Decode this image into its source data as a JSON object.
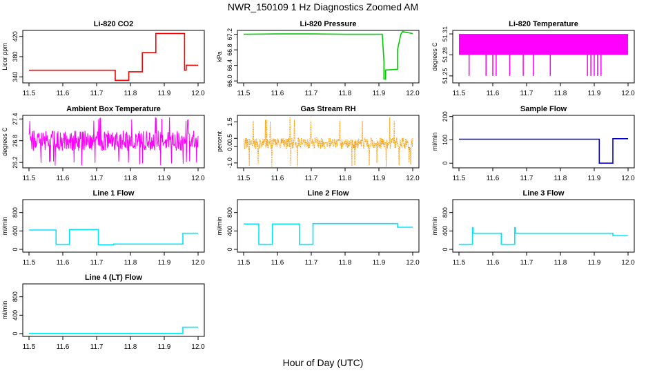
{
  "figure": {
    "title": "NWR_150109  1 Hz Diagnostics Zoomed AM",
    "xlabel": "Hour of Day (UTC)"
  },
  "chart_data": [
    {
      "type": "line",
      "title": "Li-820 CO2",
      "ylabel": "Licor ppm",
      "color": "#ff0000",
      "xlim": [
        11.5,
        12.0
      ],
      "ylim": [
        328,
        432
      ],
      "xticks": [
        "11.5",
        "11.6",
        "11.7",
        "11.8",
        "11.9",
        "12.0"
      ],
      "yticks": [
        {
          "v": 340,
          "label": "340"
        },
        {
          "v": 380,
          "label": "380"
        },
        {
          "v": 420,
          "label": "420"
        }
      ],
      "series": [
        {
          "x": [
            11.5,
            11.755,
            11.755,
            11.795,
            11.795,
            11.835,
            11.835,
            11.875,
            11.875,
            11.96,
            11.96,
            11.965,
            11.965,
            12.0
          ],
          "y": [
            353,
            353,
            333,
            333,
            350,
            350,
            388,
            388,
            426,
            426,
            353,
            353,
            363,
            363
          ]
        }
      ]
    },
    {
      "type": "line",
      "title": "Li-820 Pressure",
      "ylabel": "kPa",
      "color": "#00cc00",
      "xlim": [
        11.5,
        12.0
      ],
      "ylim": [
        65.95,
        67.3
      ],
      "xticks": [
        "11.5",
        "11.6",
        "11.7",
        "11.8",
        "11.9",
        "12.0"
      ],
      "yticks": [
        {
          "v": 66.0,
          "label": "66.0"
        },
        {
          "v": 66.4,
          "label": "66.4"
        },
        {
          "v": 66.8,
          "label": "66.8"
        },
        {
          "v": 67.2,
          "label": "67.2"
        }
      ],
      "series": [
        {
          "x": [
            11.5,
            11.6,
            11.7,
            11.8,
            11.85,
            11.91,
            11.915,
            11.915,
            11.92,
            11.92,
            11.955,
            11.955,
            11.965,
            11.97,
            11.98,
            12.0
          ],
          "y": [
            67.2,
            67.21,
            67.21,
            67.2,
            67.2,
            67.2,
            66.5,
            66.05,
            66.05,
            66.28,
            66.3,
            66.8,
            67.2,
            67.27,
            67.25,
            67.22
          ]
        }
      ]
    },
    {
      "type": "line",
      "title": "Li-820 Temperature",
      "ylabel": "degrees C",
      "color": "#ff00ff",
      "xlim": [
        11.5,
        12.0
      ],
      "ylim": [
        51.24,
        51.315
      ],
      "xticks": [
        "11.5",
        "11.6",
        "11.7",
        "11.8",
        "11.9",
        "12.0"
      ],
      "yticks": [
        {
          "v": 51.25,
          "label": "51.25"
        },
        {
          "v": 51.28,
          "label": "51.28"
        },
        {
          "v": 51.31,
          "label": "51.31"
        }
      ],
      "band": {
        "lo": 51.28,
        "hi": 51.31
      },
      "spikes": [
        {
          "x": 11.53,
          "y": 51.25
        },
        {
          "x": 11.58,
          "y": 51.25
        },
        {
          "x": 11.6,
          "y": 51.25
        },
        {
          "x": 11.61,
          "y": 51.25
        },
        {
          "x": 11.65,
          "y": 51.25
        },
        {
          "x": 11.69,
          "y": 51.25
        },
        {
          "x": 11.72,
          "y": 51.25
        },
        {
          "x": 11.77,
          "y": 51.25
        },
        {
          "x": 11.88,
          "y": 51.25
        },
        {
          "x": 11.89,
          "y": 51.25
        },
        {
          "x": 11.9,
          "y": 51.25
        },
        {
          "x": 11.91,
          "y": 51.25
        },
        {
          "x": 11.92,
          "y": 51.25
        }
      ]
    },
    {
      "type": "line",
      "title": "Ambient Box Temperature",
      "ylabel": "degrees C",
      "color": "#ff00ff",
      "xlim": [
        11.5,
        12.0
      ],
      "ylim": [
        26.05,
        27.5
      ],
      "xticks": [
        "11.5",
        "11.6",
        "11.7",
        "11.8",
        "11.9",
        "12.0"
      ],
      "yticks": [
        {
          "v": 26.2,
          "label": "26.2"
        },
        {
          "v": 26.8,
          "label": "26.8"
        },
        {
          "v": 27.4,
          "label": "27.4"
        }
      ],
      "noise": {
        "center": 26.8,
        "spread": 0.28,
        "lo": 26.1,
        "hi": 27.45,
        "spikes": 0.06
      }
    },
    {
      "type": "line",
      "title": "Gas Stream RH",
      "ylabel": "percent",
      "color": "#ff9900",
      "xlim": [
        11.5,
        12.0
      ],
      "ylim": [
        -1.3,
        1.9
      ],
      "xticks": [
        "11.5",
        "11.6",
        "11.7",
        "11.8",
        "11.9",
        "12.0"
      ],
      "yticks": [
        {
          "v": -1.0,
          "label": "-1.0"
        },
        {
          "v": 0.0,
          "label": "0.0"
        },
        {
          "v": 0.5,
          "label": "0.5"
        },
        {
          "v": 1.5,
          "label": "1.5"
        }
      ],
      "noise": {
        "center": 0.2,
        "spread": 0.35,
        "lo": -1.25,
        "hi": 1.8,
        "spikes": 0.04
      }
    },
    {
      "type": "line",
      "title": "Sample Flow",
      "ylabel": "ml/min",
      "color": "#0000cc",
      "xlim": [
        11.5,
        12.0
      ],
      "ylim": [
        -20,
        205
      ],
      "xticks": [
        "11.5",
        "11.6",
        "11.7",
        "11.8",
        "11.9",
        "12.0"
      ],
      "yticks": [
        {
          "v": 0,
          "label": "0"
        },
        {
          "v": 100,
          "label": "100"
        },
        {
          "v": 200,
          "label": "200"
        }
      ],
      "series": [
        {
          "x": [
            11.5,
            11.915,
            11.915,
            11.955,
            11.955,
            12.0
          ],
          "y": [
            103,
            103,
            0,
            0,
            105,
            105
          ]
        }
      ]
    },
    {
      "type": "line",
      "title": "Line 1 Flow",
      "ylabel": "ml/min",
      "color": "#00e5ff",
      "xlim": [
        11.5,
        12.0
      ],
      "ylim": [
        -60,
        1080
      ],
      "xticks": [
        "11.5",
        "11.6",
        "11.7",
        "11.8",
        "11.9",
        "12.0"
      ],
      "yticks": [
        {
          "v": 0,
          "label": "0"
        },
        {
          "v": 400,
          "label": "400"
        },
        {
          "v": 800,
          "label": "800"
        }
      ],
      "series": [
        {
          "x": [
            11.5,
            11.58,
            11.58,
            11.62,
            11.62,
            11.705,
            11.705,
            11.75,
            11.75,
            11.955,
            11.955,
            12.0
          ],
          "y": [
            420,
            420,
            110,
            110,
            430,
            430,
            100,
            100,
            115,
            115,
            350,
            350
          ]
        }
      ]
    },
    {
      "type": "line",
      "title": "Line 2 Flow",
      "ylabel": "ml/min",
      "color": "#00e5ff",
      "xlim": [
        11.5,
        12.0
      ],
      "ylim": [
        -60,
        1080
      ],
      "xticks": [
        "11.5",
        "11.6",
        "11.7",
        "11.8",
        "11.9",
        "12.0"
      ],
      "yticks": [
        {
          "v": 0,
          "label": "0"
        },
        {
          "v": 400,
          "label": "400"
        },
        {
          "v": 800,
          "label": "800"
        }
      ],
      "series": [
        {
          "x": [
            11.5,
            11.545,
            11.545,
            11.585,
            11.585,
            11.665,
            11.665,
            11.705,
            11.705,
            11.955,
            11.955,
            12.0
          ],
          "y": [
            550,
            550,
            110,
            110,
            550,
            550,
            110,
            110,
            560,
            560,
            480,
            480
          ]
        }
      ]
    },
    {
      "type": "line",
      "title": "Line 3 Flow",
      "ylabel": "ml/min",
      "color": "#00e5ff",
      "xlim": [
        11.5,
        12.0
      ],
      "ylim": [
        -60,
        1080
      ],
      "xticks": [
        "11.5",
        "11.6",
        "11.7",
        "11.8",
        "11.9",
        "12.0"
      ],
      "yticks": [
        {
          "v": 0,
          "label": "0"
        },
        {
          "v": 400,
          "label": "400"
        },
        {
          "v": 800,
          "label": "800"
        }
      ],
      "series": [
        {
          "x": [
            11.5,
            11.54,
            11.54,
            11.542,
            11.542,
            11.625,
            11.625,
            11.665,
            11.665,
            11.667,
            11.667,
            11.955,
            11.955,
            12.0
          ],
          "y": [
            110,
            110,
            470,
            470,
            350,
            350,
            110,
            110,
            470,
            470,
            350,
            350,
            300,
            300
          ]
        }
      ]
    },
    {
      "type": "line",
      "title": "Line 4 (LT) Flow",
      "ylabel": "ml/min",
      "color": "#00e5ff",
      "xlim": [
        11.5,
        12.0
      ],
      "ylim": [
        -60,
        1080
      ],
      "xticks": [
        "11.5",
        "11.6",
        "11.7",
        "11.8",
        "11.9",
        "12.0"
      ],
      "yticks": [
        {
          "v": 0,
          "label": "0"
        },
        {
          "v": 400,
          "label": "400"
        },
        {
          "v": 800,
          "label": "800"
        }
      ],
      "series": [
        {
          "x": [
            11.5,
            11.955,
            11.955,
            12.0
          ],
          "y": [
            5,
            5,
            140,
            140
          ]
        }
      ]
    }
  ]
}
